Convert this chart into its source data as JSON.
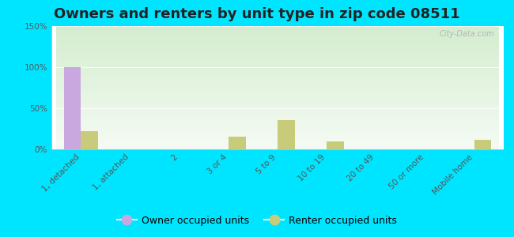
{
  "title": "Owners and renters by unit type in zip code 08511",
  "categories": [
    "1, detached",
    "1, attached",
    "2",
    "3 or 4",
    "5 to 9",
    "10 to 19",
    "20 to 49",
    "50 or more",
    "Mobile home"
  ],
  "owner_values": [
    100,
    0,
    0,
    0,
    0,
    0,
    0,
    0,
    0
  ],
  "renter_values": [
    22,
    0,
    0,
    15,
    36,
    10,
    0,
    0,
    12
  ],
  "owner_color": "#c9a8e0",
  "renter_color": "#c8cc7a",
  "background_outer": "#00e5ff",
  "ylim": [
    0,
    150
  ],
  "yticks": [
    0,
    50,
    100,
    150
  ],
  "ytick_labels": [
    "0%",
    "50%",
    "100%",
    "150%"
  ],
  "bar_width": 0.35,
  "title_fontsize": 13,
  "tick_fontsize": 7.5,
  "legend_fontsize": 9,
  "watermark": "City-Data.com"
}
